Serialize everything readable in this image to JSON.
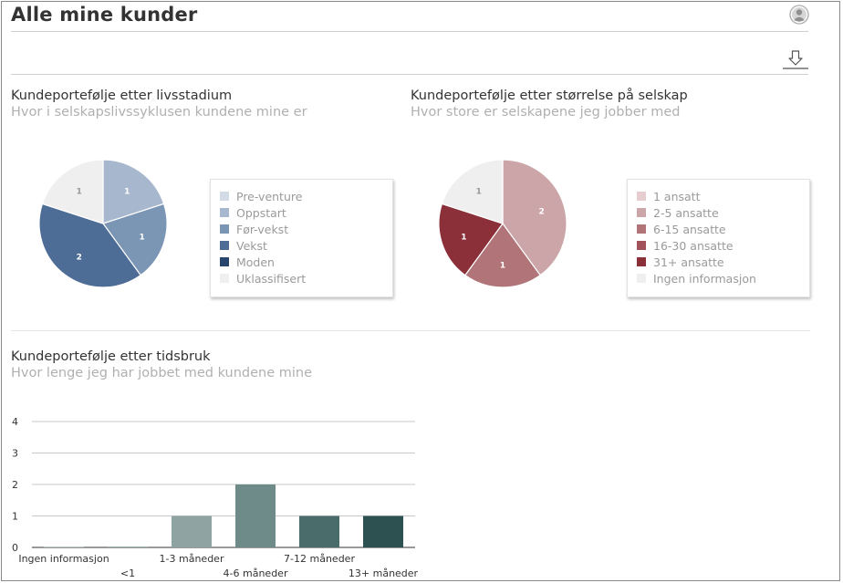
{
  "page": {
    "title": "Alle mine kunder"
  },
  "icons": {
    "profile": "user-profile-icon",
    "download": "download-icon"
  },
  "sections": {
    "lifecycle": {
      "title": "Kundeportefølje etter livsstadium",
      "subtitle": "Hvor i selskapslivssyklusen kundene mine er"
    },
    "size": {
      "title": "Kundeportefølje etter størrelse på selskap",
      "subtitle": "Hvor store er selskapene jeg jobber med"
    },
    "time": {
      "title": "Kundeportefølje etter tidsbruk",
      "subtitle": "Hvor lenge jeg har jobbet med kundene mine"
    }
  },
  "chart_data": [
    {
      "type": "pie",
      "title": "Kundeportefølje etter livsstadium",
      "legend_position": "right",
      "labels": [
        "Pre-venture",
        "Oppstart",
        "Før-vekst",
        "Vekst",
        "Moden",
        "Uklassifisert"
      ],
      "values": [
        0,
        1,
        1,
        2,
        0,
        1
      ],
      "colors": [
        "#d3dbe6",
        "#a7b7cd",
        "#7b95b5",
        "#4d6c96",
        "#27456d",
        "#efefef"
      ]
    },
    {
      "type": "pie",
      "title": "Kundeportefølje etter størrelse på selskap",
      "legend_position": "right",
      "labels": [
        "1 ansatt",
        "2-5 ansatte",
        "6-15 ansatte",
        "16-30 ansatte",
        "31+ ansatte",
        "Ingen informasjon"
      ],
      "values": [
        0,
        2,
        1,
        0,
        1,
        1
      ],
      "colors": [
        "#e6cdcf",
        "#cba5a8",
        "#b07479",
        "#a1525b",
        "#8b2f39",
        "#efefef"
      ]
    },
    {
      "type": "bar",
      "title": "Kundeportefølje etter tidsbruk",
      "categories": [
        "Ingen informasjon",
        "<1",
        "1-3 måneder",
        "4-6 måneder",
        "7-12 måneder",
        "13+ måneder"
      ],
      "values": [
        0,
        0,
        1,
        2,
        1,
        1
      ],
      "colors": [
        "#b9c7c6",
        "#9db0ae",
        "#8fa3a2",
        "#6e8a89",
        "#4a6c6b",
        "#2c5150"
      ],
      "yticks": [
        "0",
        "1",
        "2",
        "3",
        "4"
      ],
      "ylim": [
        0,
        4
      ],
      "grid": true
    }
  ]
}
